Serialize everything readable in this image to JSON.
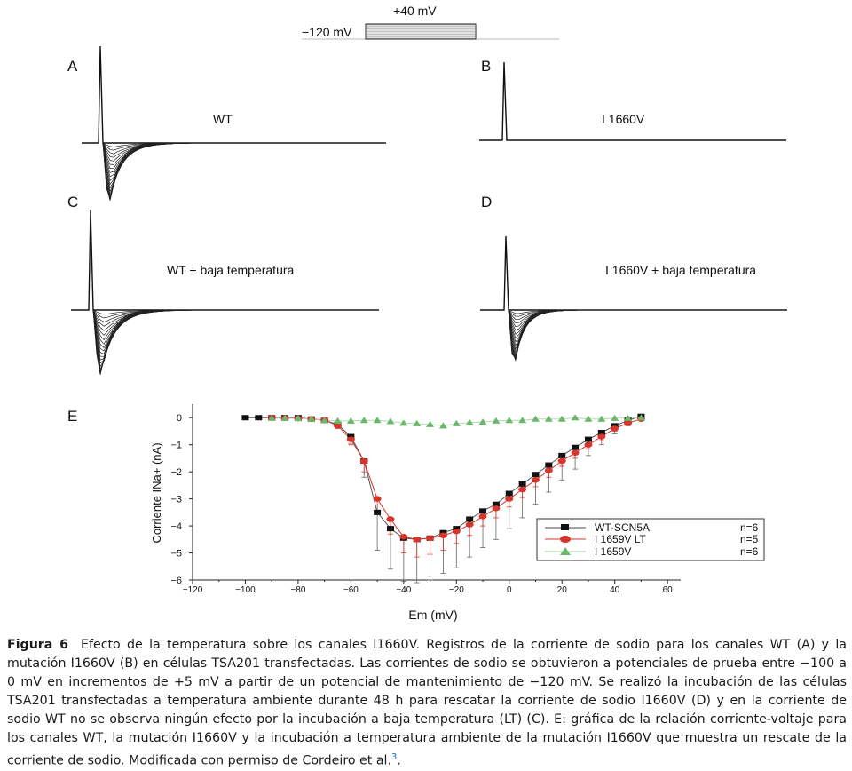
{
  "protocol": {
    "holding_label": "−120 mV",
    "test_label": "+40 mV"
  },
  "panels": {
    "A": {
      "letter": "A",
      "title": "WT"
    },
    "B": {
      "letter": "B",
      "title": "I 1660V"
    },
    "C": {
      "letter": "C",
      "title": "WT + baja temperatura"
    },
    "D": {
      "letter": "D",
      "title": "I 1660V + baja temperatura"
    },
    "E": {
      "letter": "E"
    }
  },
  "chart_data": {
    "type": "line",
    "xlabel": "Em (mV)",
    "ylabel": "Corriente INa+ (nA)",
    "xlim": [
      -120,
      65
    ],
    "ylim": [
      -6,
      0.5
    ],
    "xticks": [
      -120,
      -100,
      -80,
      -60,
      -40,
      -20,
      0,
      20,
      40,
      60
    ],
    "xtick_labels": [
      "−120",
      "−100",
      "−80",
      "−60",
      "−40",
      "−20",
      "0",
      "20",
      "40",
      "60"
    ],
    "yticks": [
      0,
      -1,
      -2,
      -3,
      -4,
      -5,
      -6
    ],
    "ytick_labels": [
      "0",
      "−1",
      "−2",
      "−3",
      "−4",
      "−5",
      "−6"
    ],
    "x": [
      -100,
      -95,
      -90,
      -85,
      -80,
      -75,
      -70,
      -65,
      -60,
      -55,
      -50,
      -45,
      -40,
      -35,
      -30,
      -25,
      -20,
      -15,
      -10,
      -5,
      0,
      5,
      10,
      15,
      20,
      25,
      30,
      35,
      40,
      45,
      50
    ],
    "series": [
      {
        "name": "WT-SCN5A",
        "n": "n=6",
        "color": "#111111",
        "marker": "square",
        "values": [
          0,
          0,
          0,
          0,
          0,
          -0.05,
          -0.1,
          -0.25,
          -0.7,
          -1.6,
          -3.5,
          -4.1,
          -4.45,
          -4.5,
          -4.45,
          -4.25,
          -4.1,
          -3.75,
          -3.45,
          -3.2,
          -2.8,
          -2.45,
          -2.1,
          -1.75,
          -1.4,
          -1.1,
          -0.8,
          -0.55,
          -0.3,
          -0.1,
          0.05
        ],
        "errors": [
          0,
          0,
          0,
          0,
          0,
          0.05,
          0.05,
          0.1,
          0.25,
          0.6,
          1.4,
          1.5,
          1.6,
          1.6,
          1.55,
          1.5,
          1.45,
          1.4,
          1.35,
          1.3,
          1.3,
          1.25,
          1.1,
          1.0,
          0.9,
          0.8,
          0.6,
          0.45,
          0.3,
          0.15,
          0.05
        ]
      },
      {
        "name": "I 1659V LT",
        "n": "n=5",
        "color": "#d9342b",
        "marker": "ellipse",
        "values": [
          null,
          null,
          0,
          -0.02,
          -0.03,
          -0.05,
          -0.08,
          -0.3,
          -0.8,
          -1.6,
          -3.0,
          -3.75,
          -4.4,
          -4.5,
          -4.45,
          -4.35,
          -4.2,
          -3.95,
          -3.65,
          -3.35,
          -3.0,
          -2.65,
          -2.3,
          -1.95,
          -1.6,
          -1.3,
          -1.0,
          -0.7,
          -0.4,
          -0.2,
          -0.05
        ],
        "errors": [
          0,
          0,
          0,
          0.02,
          0.02,
          0.05,
          0.05,
          0.1,
          0.2,
          0.4,
          0.5,
          0.55,
          0.6,
          0.65,
          0.6,
          0.55,
          0.45,
          0.4,
          0.35,
          0.35,
          0.3,
          0.3,
          0.25,
          0.25,
          0.2,
          0.2,
          0.15,
          0.15,
          0.1,
          0.1,
          0.05
        ]
      },
      {
        "name": "I 1659V",
        "n": "n=6",
        "color": "#6ab86a",
        "marker": "triangle",
        "values": [
          null,
          null,
          -0.02,
          -0.02,
          -0.03,
          -0.05,
          -0.1,
          -0.12,
          -0.12,
          -0.1,
          -0.1,
          -0.14,
          -0.2,
          -0.22,
          -0.25,
          -0.3,
          -0.22,
          -0.18,
          -0.16,
          -0.12,
          -0.1,
          -0.1,
          -0.05,
          -0.05,
          -0.05,
          0.0,
          -0.05,
          -0.05,
          -0.02,
          -0.02,
          0.0
        ],
        "errors": []
      }
    ]
  },
  "caption": {
    "label": "Figura 6",
    "text": "Efecto de la temperatura sobre los canales I1660V. Registros de la corriente de sodio para los canales WT (A) y la mutación I1660V (B) en células TSA201 transfectadas. Las corrientes de sodio se obtuvieron a potenciales de prueba entre −100 a 0 mV en incrementos de +5 mV a partir de un potencial de mantenimiento de −120 mV. Se realizó la incubación de las células TSA201 transfectadas a temperatura ambiente durante 48 h para rescatar la corriente de sodio I1660V (D) y en la corriente de sodio WT no se observa ningún efecto por la incubación a baja temperatura (LT) (C). E: gráfica de la relación corriente-voltaje para los canales WT, la mutación I1660V y la incubación a temperatura ambiente de la mutación I1660V que muestra un rescate de la corriente de sodio. Modificada con permiso de Cordeiro et al.",
    "reference": "3",
    "end": "."
  }
}
